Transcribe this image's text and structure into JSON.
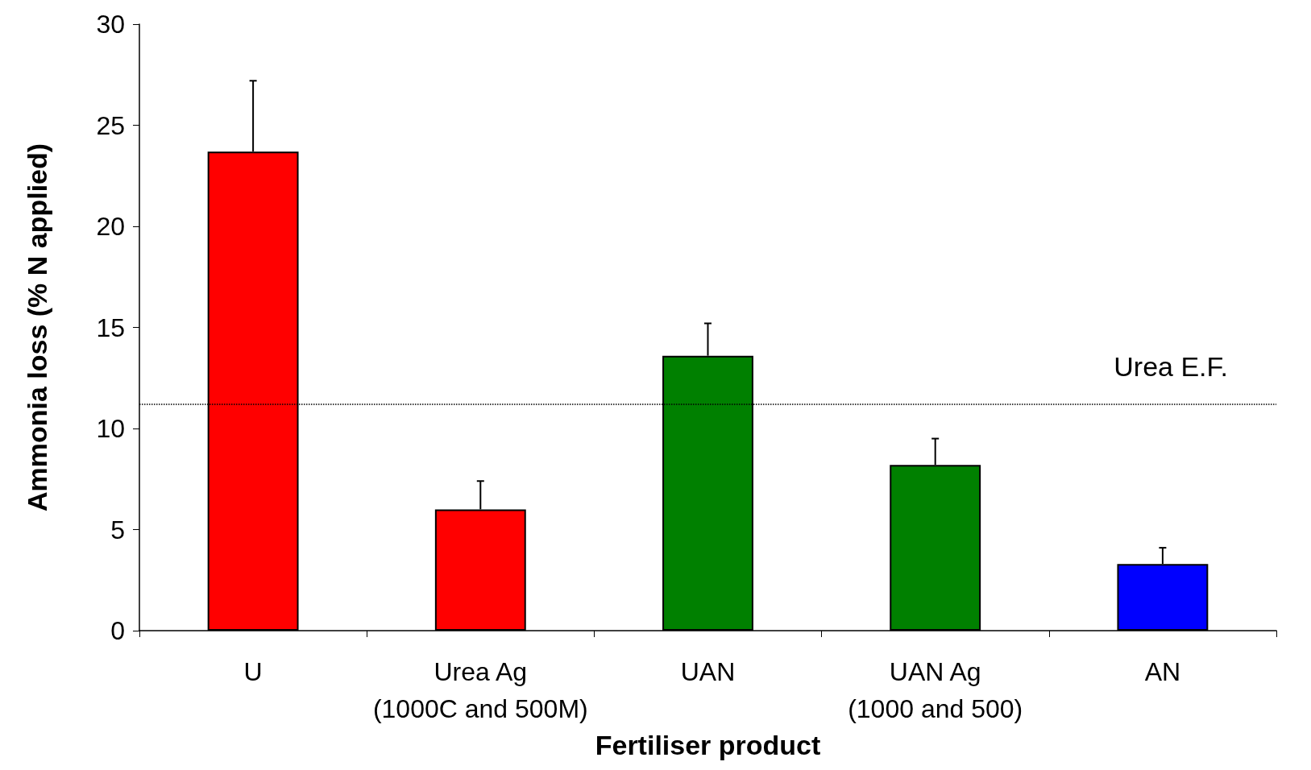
{
  "chart_data": {
    "type": "bar",
    "xlabel": "Fertiliser product",
    "ylabel": "Ammonia loss (% N applied)",
    "categories": [
      "U",
      "Urea Ag\n(1000C and 500M)",
      "UAN",
      "UAN Ag\n(1000 and 500)",
      "AN"
    ],
    "values": [
      23.7,
      6.0,
      13.6,
      8.2,
      3.3
    ],
    "colors": [
      "#ff0000",
      "#ff0000",
      "#008000",
      "#008000",
      "#0000ff"
    ],
    "errors": [
      [
        23.7,
        27.2
      ],
      [
        6.0,
        7.4
      ],
      [
        13.6,
        15.2
      ],
      [
        8.2,
        9.5
      ],
      [
        3.3,
        4.1
      ]
    ],
    "ylim": [
      0,
      30
    ],
    "yticks": [
      0,
      5,
      10,
      15,
      20,
      25,
      30
    ],
    "grid": false,
    "ref_lines": [
      {
        "axis": "y",
        "value": 11.2,
        "label": "Urea E.F.",
        "color": "#000000",
        "line_style": "dotted"
      }
    ]
  }
}
